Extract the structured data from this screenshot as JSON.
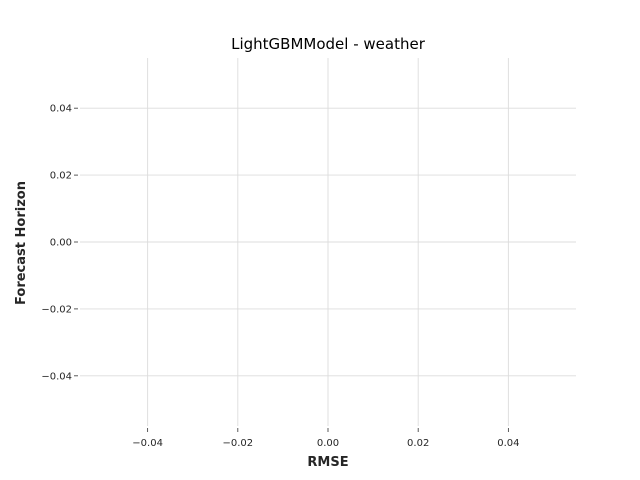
{
  "chart_data": {
    "type": "line",
    "title": "LightGBMModel - weather",
    "xlabel": "RMSE",
    "ylabel": "Forecast Horizon",
    "xlim": [
      -0.055,
      0.055
    ],
    "ylim": [
      -0.055,
      0.055
    ],
    "xticks": [
      -0.04,
      -0.02,
      0.0,
      0.02,
      0.04
    ],
    "yticks": [
      0.04,
      0.02,
      0.0,
      -0.02,
      -0.04
    ],
    "xtick_labels": [
      "−0.04",
      "−0.02",
      "0.00",
      "0.02",
      "0.04"
    ],
    "ytick_labels": [
      "0.04",
      "0.02",
      "0.00",
      "−0.02",
      "−0.04"
    ],
    "grid": true,
    "series": [],
    "colors": {
      "grid": "#dcdcdc",
      "text": "#262626",
      "background": "#ffffff"
    }
  }
}
